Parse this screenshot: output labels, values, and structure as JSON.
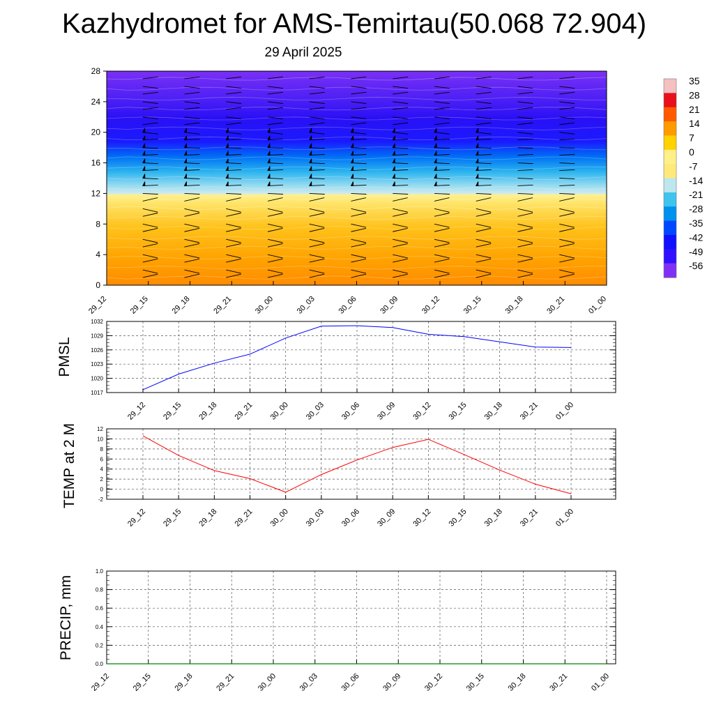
{
  "title": "Kazhydromet for AMS-Temirtau(50.068 72.904)",
  "subtitle": "29 April 2025",
  "colors": {
    "pmsl_line": "#0000ff",
    "temp_line": "#ff0000",
    "precip_line": "#008000",
    "grid": "#555555"
  },
  "colorbar": {
    "labels": [
      "35",
      "28",
      "21",
      "14",
      "7",
      "0",
      "-7",
      "-14",
      "-21",
      "-28",
      "-35",
      "-42",
      "-49",
      "-56"
    ],
    "stops": [
      "#f4c0c0",
      "#e8101a",
      "#ff5a00",
      "#ff9b00",
      "#ffd200",
      "#fff08a",
      "#ffe97a",
      "#bde6ee",
      "#3fc4ee",
      "#0091ee",
      "#0048ff",
      "#1010ff",
      "#3010ff",
      "#8030f5"
    ]
  },
  "chart_data": [
    {
      "type": "heatmap",
      "description": "temperature cross-section with wind barbs",
      "x_ticks": [
        "29_12",
        "29_15",
        "29_18",
        "29_21",
        "30_00",
        "30_03",
        "30_06",
        "30_09",
        "30_12",
        "30_15",
        "30_18",
        "30_21",
        "01_00"
      ],
      "y_ticks": [
        "0",
        "4",
        "8",
        "12",
        "16",
        "20",
        "24",
        "28"
      ],
      "ylim": [
        0,
        28
      ]
    },
    {
      "type": "line",
      "ylabel": "PMSL",
      "x": [
        "29_12",
        "29_15",
        "29_18",
        "29_21",
        "30_00",
        "30_03",
        "30_06",
        "30_09",
        "30_12",
        "30_15",
        "30_18",
        "30_21",
        "01_00"
      ],
      "values": [
        1017.6,
        1020.9,
        1023.2,
        1025.1,
        1028.5,
        1031.0,
        1031.1,
        1030.7,
        1029.3,
        1028.8,
        1027.7,
        1026.6,
        1026.5
      ],
      "y_ticks": [
        "1017",
        "1020",
        "1023",
        "1026",
        "1029",
        "1032"
      ],
      "ylim": [
        1017,
        1032
      ],
      "grid": true
    },
    {
      "type": "line",
      "ylabel": "TEMP at 2 M",
      "x": [
        "29_12",
        "29_15",
        "29_18",
        "29_21",
        "30_00",
        "30_03",
        "30_06",
        "30_09",
        "30_12",
        "30_15",
        "30_18",
        "30_21",
        "01_00"
      ],
      "values": [
        10.6,
        6.7,
        3.7,
        2.1,
        -0.6,
        2.9,
        5.8,
        8.3,
        9.9,
        6.9,
        3.8,
        1.0,
        -0.9
      ],
      "y_ticks": [
        "-2",
        "0",
        "2",
        "4",
        "6",
        "8",
        "10",
        "12"
      ],
      "ylim": [
        -2,
        12
      ],
      "grid": true
    },
    {
      "type": "line",
      "ylabel": "PRECIP, mm",
      "x": [
        "29_12",
        "29_15",
        "29_18",
        "29_21",
        "30_00",
        "30_03",
        "30_06",
        "30_09",
        "30_12",
        "30_15",
        "30_18",
        "30_21",
        "01_00"
      ],
      "values": [
        0,
        0,
        0,
        0,
        0,
        0,
        0,
        0,
        0,
        0,
        0,
        0,
        0
      ],
      "y_ticks": [
        "0.0",
        "0.2",
        "0.4",
        "0.6",
        "0.8",
        "1.0"
      ],
      "ylim": [
        0,
        1
      ],
      "grid": true
    }
  ]
}
